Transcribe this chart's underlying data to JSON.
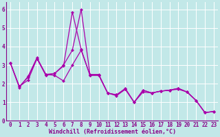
{
  "xlabel": "Windchill (Refroidissement éolien,°C)",
  "background_color": "#c2e8e8",
  "line_color": "#aa00aa",
  "xlim_min": -0.5,
  "xlim_max": 23.5,
  "ylim_min": 0,
  "ylim_max": 6.4,
  "xticks": [
    0,
    1,
    2,
    3,
    4,
    5,
    6,
    7,
    8,
    9,
    10,
    11,
    12,
    13,
    14,
    15,
    16,
    17,
    18,
    19,
    20,
    21,
    22,
    23
  ],
  "yticks": [
    0,
    1,
    2,
    3,
    4,
    5,
    6
  ],
  "line1_x": [
    0,
    1,
    2,
    3,
    4,
    5,
    6,
    7,
    8,
    9,
    10,
    11,
    12,
    13,
    14,
    15,
    16,
    17,
    18,
    19,
    20,
    21,
    22,
    23
  ],
  "line1_y": [
    3.1,
    1.8,
    2.4,
    3.4,
    2.5,
    2.55,
    3.0,
    3.8,
    6.0,
    2.5,
    2.5,
    1.5,
    1.4,
    1.75,
    1.0,
    1.65,
    1.5,
    1.6,
    1.65,
    1.75,
    1.55,
    1.1,
    0.45,
    0.5
  ],
  "line2_x": [
    0,
    1,
    2,
    3,
    4,
    5,
    6,
    7,
    8,
    9,
    10,
    11,
    12,
    13,
    14,
    15,
    16,
    17,
    18,
    19,
    20,
    21,
    22,
    23
  ],
  "line2_y": [
    3.1,
    1.85,
    2.35,
    3.35,
    2.45,
    2.55,
    2.95,
    5.85,
    3.85,
    2.45,
    2.45,
    1.5,
    1.4,
    1.7,
    1.0,
    1.65,
    1.5,
    1.6,
    1.65,
    1.75,
    1.55,
    1.1,
    0.45,
    0.5
  ],
  "line3_x": [
    0,
    1,
    2,
    3,
    4,
    5,
    6,
    7,
    8,
    9,
    10,
    11,
    12,
    13,
    14,
    15,
    16,
    17,
    18,
    19,
    20,
    21,
    22,
    23
  ],
  "line3_y": [
    3.1,
    1.85,
    2.2,
    3.35,
    2.5,
    2.45,
    2.15,
    3.0,
    3.8,
    2.45,
    2.45,
    1.5,
    1.35,
    1.7,
    1.0,
    1.55,
    1.5,
    1.6,
    1.65,
    1.7,
    1.55,
    1.1,
    0.45,
    0.5
  ],
  "font_color": "#880088",
  "grid_color": "#ffffff",
  "tick_fontsize": 5.5,
  "xlabel_fontsize": 6.0,
  "linewidth": 0.9,
  "markersize": 2.5
}
